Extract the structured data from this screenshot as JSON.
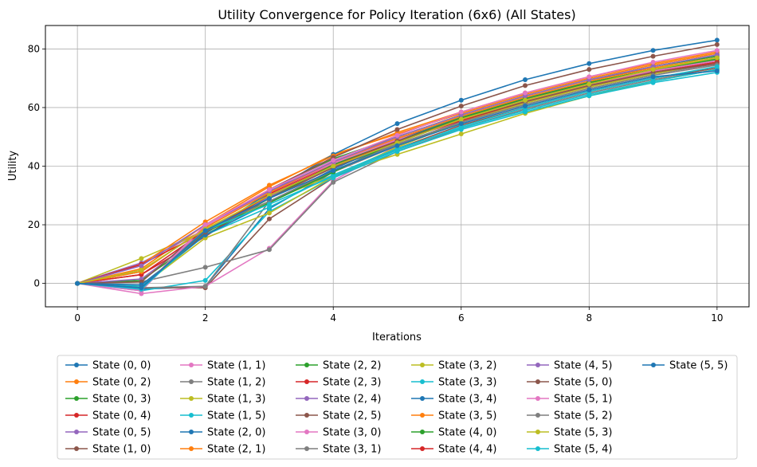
{
  "chart_data": {
    "type": "line",
    "title": "Utility Convergence for Policy Iteration (6x6) (All States)",
    "xlabel": "Iterations",
    "ylabel": "Utility",
    "xlim": [
      -0.5,
      10.5
    ],
    "ylim": [
      -8,
      88
    ],
    "xticks": [
      0,
      2,
      4,
      6,
      8,
      10
    ],
    "yticks": [
      0,
      20,
      40,
      60,
      80
    ],
    "grid": true,
    "legend_position": "bottom",
    "legend_columns": 6,
    "x": [
      0,
      1,
      2,
      3,
      4,
      5,
      6,
      7,
      8,
      9,
      10
    ],
    "series": [
      {
        "name": "State (0, 0)",
        "color": "#1f77b4",
        "values": [
          0,
          -2.0,
          -1.0,
          25.5,
          38.0,
          48.0,
          56.0,
          62.5,
          68.0,
          72.5,
          76.0
        ]
      },
      {
        "name": "State (0, 2)",
        "color": "#ff7f0e",
        "values": [
          0,
          5.0,
          20.0,
          33.0,
          44.0,
          51.0,
          58.0,
          64.5,
          70.0,
          74.5,
          78.5
        ]
      },
      {
        "name": "State (0, 3)",
        "color": "#2ca02c",
        "values": [
          0,
          4.0,
          19.0,
          32.0,
          42.5,
          50.0,
          57.5,
          64.0,
          69.5,
          74.0,
          77.5
        ]
      },
      {
        "name": "State (0, 4)",
        "color": "#d62728",
        "values": [
          0,
          3.0,
          18.0,
          30.0,
          40.5,
          48.5,
          56.0,
          62.5,
          68.0,
          72.5,
          76.0
        ]
      },
      {
        "name": "State (0, 5)",
        "color": "#9467bd",
        "values": [
          0,
          7.0,
          18.5,
          29.5,
          39.5,
          47.5,
          55.0,
          61.5,
          67.0,
          71.5,
          75.0
        ]
      },
      {
        "name": "State (1, 0)",
        "color": "#8c564b",
        "values": [
          0,
          -1.5,
          -1.5,
          22.0,
          36.0,
          46.0,
          54.0,
          60.0,
          65.5,
          70.0,
          73.5
        ]
      },
      {
        "name": "State (1, 1)",
        "color": "#e377c2",
        "values": [
          0,
          -3.5,
          -1.0,
          12.0,
          35.0,
          47.0,
          55.5,
          62.0,
          67.5,
          72.0,
          75.5
        ]
      },
      {
        "name": "State (1, 2)",
        "color": "#7f7f7f",
        "values": [
          0,
          0.5,
          5.5,
          11.5,
          34.5,
          45.0,
          53.0,
          59.5,
          65.0,
          69.5,
          73.0
        ]
      },
      {
        "name": "State (1, 3)",
        "color": "#bcbd22",
        "values": [
          0,
          8.5,
          18.0,
          28.0,
          37.0,
          44.0,
          51.0,
          58.0,
          64.0,
          69.0,
          73.0
        ]
      },
      {
        "name": "State (1, 5)",
        "color": "#17becf",
        "values": [
          0,
          -2.5,
          1.0,
          24.5,
          36.0,
          45.0,
          52.5,
          58.5,
          64.0,
          68.5,
          72.0
        ]
      },
      {
        "name": "State (2, 0)",
        "color": "#1f77b4",
        "values": [
          0,
          -1.5,
          17.0,
          31.0,
          44.0,
          54.5,
          62.5,
          69.5,
          75.0,
          79.5,
          83.0
        ]
      },
      {
        "name": "State (2, 1)",
        "color": "#ff7f0e",
        "values": [
          0,
          6.5,
          21.0,
          33.5,
          43.5,
          51.5,
          58.5,
          65.0,
          70.5,
          75.0,
          79.0
        ]
      },
      {
        "name": "State (2, 2)",
        "color": "#2ca02c",
        "values": [
          0,
          1.0,
          16.5,
          29.0,
          40.5,
          49.0,
          56.5,
          63.0,
          68.5,
          73.0,
          76.5
        ]
      },
      {
        "name": "State (2, 3)",
        "color": "#d62728",
        "values": [
          0,
          3.0,
          16.0,
          30.5,
          41.0,
          49.0,
          56.5,
          63.0,
          68.5,
          73.0,
          77.0
        ]
      },
      {
        "name": "State (2, 4)",
        "color": "#9467bd",
        "values": [
          0,
          1.5,
          17.5,
          30.0,
          40.0,
          48.5,
          55.5,
          62.0,
          67.5,
          72.0,
          75.5
        ]
      },
      {
        "name": "State (2, 5)",
        "color": "#8c564b",
        "values": [
          0,
          0.5,
          19.0,
          32.0,
          43.0,
          52.5,
          60.5,
          67.5,
          73.0,
          77.5,
          81.5
        ]
      },
      {
        "name": "State (3, 0)",
        "color": "#e377c2",
        "values": [
          0,
          -2.5,
          19.5,
          31.0,
          41.0,
          49.0,
          56.0,
          62.5,
          68.0,
          72.5,
          76.0
        ]
      },
      {
        "name": "State (3, 1)",
        "color": "#7f7f7f",
        "values": [
          0,
          -1.5,
          -1.0,
          28.0,
          38.0,
          47.0,
          55.0,
          61.5,
          67.0,
          71.5,
          75.0
        ]
      },
      {
        "name": "State (3, 2)",
        "color": "#bcbd22",
        "values": [
          0,
          -1.0,
          15.5,
          24.0,
          36.5,
          46.5,
          55.0,
          61.5,
          67.0,
          71.5,
          75.5
        ]
      },
      {
        "name": "State (3, 3)",
        "color": "#17becf",
        "values": [
          0,
          -1.0,
          16.5,
          26.0,
          37.0,
          46.0,
          53.0,
          59.0,
          64.5,
          69.0,
          73.0
        ]
      },
      {
        "name": "State (3, 4)",
        "color": "#1f77b4",
        "values": [
          0,
          -0.5,
          16.5,
          27.5,
          39.0,
          48.5,
          57.0,
          63.0,
          69.0,
          74.0,
          78.0
        ]
      },
      {
        "name": "State (3, 5)",
        "color": "#ff7f0e",
        "values": [
          0,
          4.0,
          19.0,
          31.0,
          41.5,
          49.5,
          57.0,
          63.5,
          69.0,
          73.5,
          77.0
        ]
      },
      {
        "name": "State (4, 0)",
        "color": "#2ca02c",
        "values": [
          0,
          -1.5,
          17.5,
          27.5,
          38.0,
          48.5,
          56.5,
          63.0,
          68.5,
          73.0,
          76.5
        ]
      },
      {
        "name": "State (4, 4)",
        "color": "#d62728",
        "values": [
          0,
          6.5,
          17.5,
          30.0,
          40.0,
          48.5,
          55.5,
          62.0,
          67.5,
          72.0,
          75.5
        ]
      },
      {
        "name": "State (4, 5)",
        "color": "#9467bd",
        "values": [
          0,
          6.0,
          20.0,
          31.5,
          41.5,
          50.0,
          57.5,
          64.0,
          69.5,
          74.0,
          78.0
        ]
      },
      {
        "name": "State (5, 0)",
        "color": "#8c564b",
        "values": [
          0,
          -1.5,
          17.5,
          29.0,
          39.5,
          48.5,
          56.0,
          62.0,
          67.5,
          72.0,
          75.0
        ]
      },
      {
        "name": "State (5, 1)",
        "color": "#e377c2",
        "values": [
          0,
          -2.0,
          20.0,
          32.0,
          42.0,
          50.5,
          58.5,
          65.0,
          70.5,
          75.5,
          79.5
        ]
      },
      {
        "name": "State (5, 2)",
        "color": "#7f7f7f",
        "values": [
          0,
          -1.5,
          18.5,
          28.0,
          38.5,
          47.5,
          55.0,
          61.0,
          66.5,
          71.0,
          74.5
        ]
      },
      {
        "name": "State (5, 3)",
        "color": "#bcbd22",
        "values": [
          0,
          4.5,
          18.5,
          30.0,
          40.0,
          48.0,
          56.0,
          62.5,
          68.0,
          73.0,
          77.0
        ]
      },
      {
        "name": "State (5, 4)",
        "color": "#17becf",
        "values": [
          0,
          -2.0,
          18.0,
          27.0,
          36.5,
          45.5,
          53.5,
          60.0,
          65.5,
          70.0,
          74.0
        ]
      },
      {
        "name": "State (5, 5)",
        "color": "#1f77b4",
        "values": [
          0,
          -1.5,
          18.0,
          29.0,
          38.5,
          47.0,
          54.5,
          60.5,
          66.0,
          70.5,
          72.5
        ]
      }
    ]
  }
}
